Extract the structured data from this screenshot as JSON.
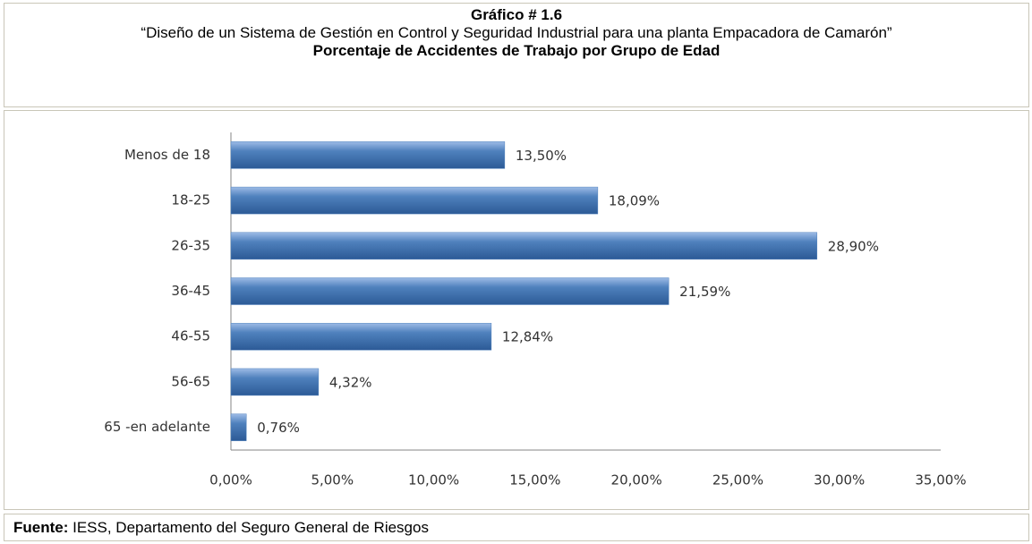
{
  "chart_data": {
    "type": "barh",
    "label": "Gráfico # 1.6",
    "subtitle": "“Diseño de un Sistema de Gestión en Control y Seguridad Industrial para una planta Empacadora de Camarón”",
    "title": "Porcentaje de Accidentes de Trabajo por Grupo de Edad",
    "categories": [
      "Menos de 18",
      "18-25",
      "26-35",
      "36-45",
      "46-55",
      "56-65",
      "65 -en adelante"
    ],
    "values": [
      13.5,
      18.09,
      28.9,
      21.59,
      12.84,
      4.32,
      0.76
    ],
    "value_labels": [
      "13,50%",
      "18,09%",
      "28,90%",
      "21,59%",
      "12,84%",
      "4,32%",
      "0,76%"
    ],
    "color": "#4f81bd",
    "xlim": [
      0,
      35
    ],
    "xticks": [
      {
        "value": 0,
        "label": "0,00%"
      },
      {
        "value": 5,
        "label": "5,00%"
      },
      {
        "value": 10,
        "label": "10,00%"
      },
      {
        "value": 15,
        "label": "15,00%"
      },
      {
        "value": 20,
        "label": "20,00%"
      },
      {
        "value": 25,
        "label": "25,00%"
      },
      {
        "value": 30,
        "label": "30,00%"
      },
      {
        "value": 35,
        "label": "35,00%"
      }
    ],
    "grid": false,
    "source_label": "Fuente:",
    "source": "IESS, Departamento del Seguro General de Riesgos"
  }
}
